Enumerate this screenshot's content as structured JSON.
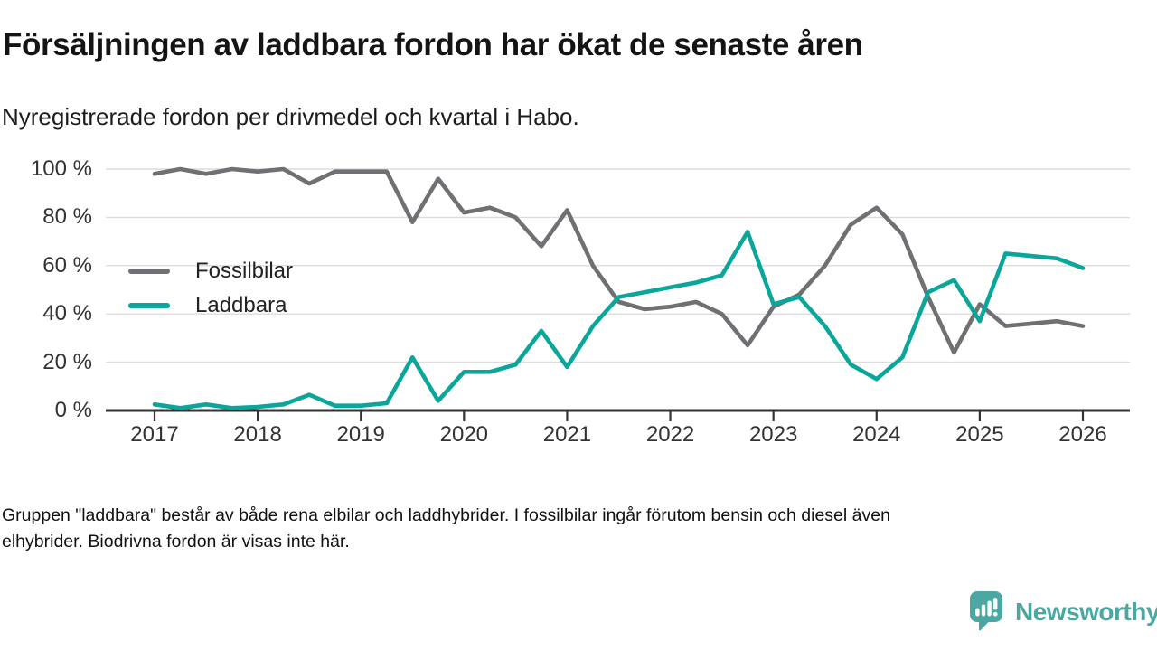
{
  "chart_data": {
    "type": "line",
    "title": "Försäljningen av laddbara fordon har ökat de senaste åren",
    "subtitle": "Nyregistrerade fordon per drivmedel och kvartal i Habo.",
    "x_start": "2017-Q1",
    "x_end": "2026-Q1",
    "x_interval": "quarter",
    "x_tick_labels": [
      "2017",
      "2018",
      "2019",
      "2020",
      "2021",
      "2022",
      "2023",
      "2024",
      "2025",
      "2026"
    ],
    "y_ticks": [
      0,
      20,
      40,
      60,
      80,
      100
    ],
    "y_tick_labels": [
      "0 %",
      "20 %",
      "40 %",
      "60 %",
      "80 %",
      "100 %"
    ],
    "ylim": [
      0,
      100
    ],
    "grid": true,
    "legend_position": "inside-top-left",
    "series": [
      {
        "name": "Fossilbilar",
        "color": "#6f7073",
        "values": [
          98,
          100,
          98,
          100,
          99,
          100,
          94,
          99,
          99,
          99,
          78,
          96,
          82,
          84,
          80,
          68,
          83,
          60,
          45,
          42,
          43,
          45,
          40,
          27,
          43,
          48,
          60,
          77,
          84,
          73,
          47,
          24,
          44,
          35,
          36,
          37,
          35
        ]
      },
      {
        "name": "Laddbara",
        "color": "#0aa69a",
        "values": [
          2.5,
          1,
          2.5,
          1,
          1.5,
          2.5,
          6.5,
          2,
          2,
          3,
          22,
          4,
          16,
          16,
          19,
          33,
          18,
          35,
          47,
          49,
          51,
          53,
          56,
          74,
          44,
          47,
          35,
          19,
          13,
          22,
          49,
          54,
          37,
          65,
          64,
          63,
          59
        ]
      }
    ]
  },
  "footer": {
    "line1": "Gruppen \"laddbara\" består av både rena elbilar och laddhybrider. I fossilbilar ingår förutom bensin och diesel även",
    "line2": "elhybrider. Biodrivna fordon är visas inte här."
  },
  "branding": {
    "logo_text": "Newsworthy",
    "logo_color": "#4ba7a1",
    "logo_icon": "newsworthy-speech-bubble-chart-icon"
  }
}
